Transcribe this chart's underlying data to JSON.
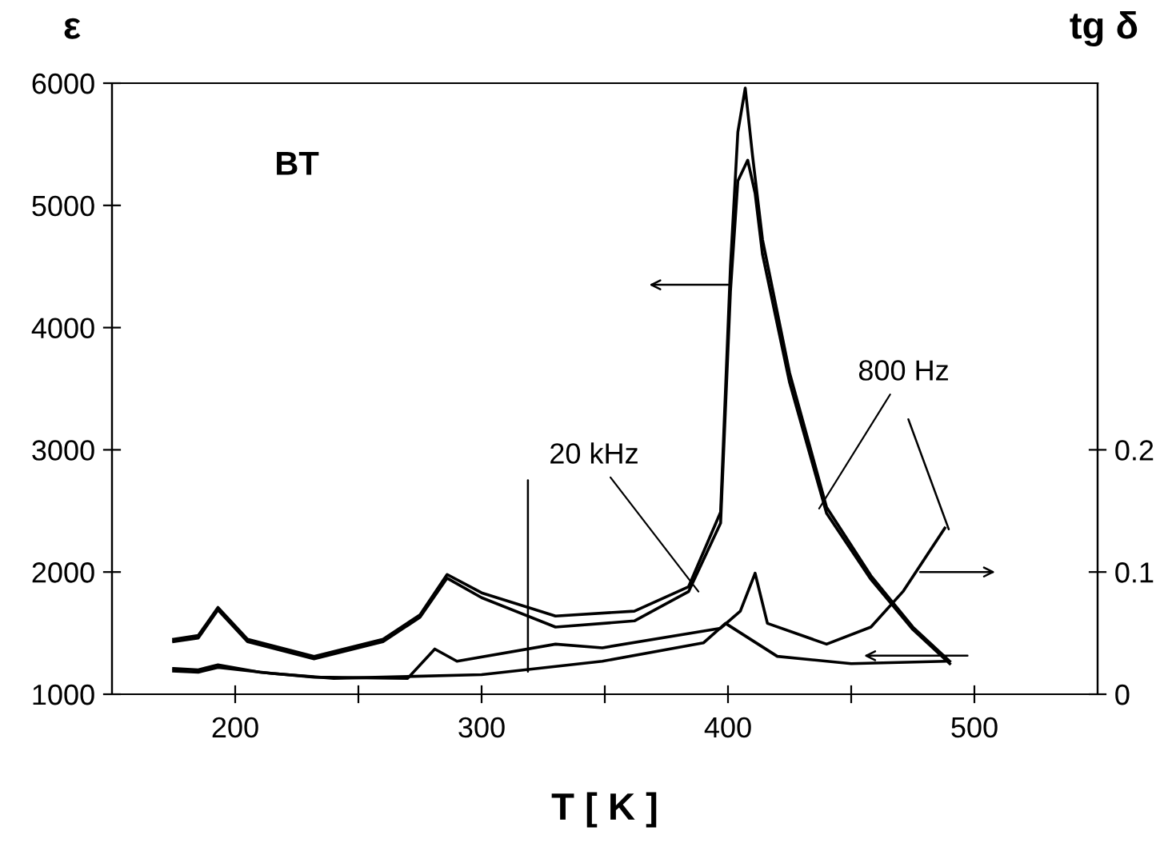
{
  "chart_data": {
    "type": "line",
    "xlabel": "T [ K ]",
    "ylabel": "ε",
    "y2label": "tg δ",
    "xlim": [
      150,
      550
    ],
    "xticks": [
      200,
      {
        "value": 250,
        "label": null
      },
      300,
      {
        "value": 350,
        "label": null
      },
      400,
      {
        "value": 450,
        "label": null
      },
      500
    ],
    "ylim": [
      1000,
      6000
    ],
    "yticks": [
      1000,
      2000,
      3000,
      4000,
      5000,
      6000
    ],
    "y2lim": [
      0,
      0.5
    ],
    "y2ticks": [
      0,
      0.1,
      0.2
    ],
    "grid": false,
    "legend": false,
    "marker": "none",
    "line_style": "solid",
    "series": [
      {
        "color": "#000000",
        "x": [
          175,
          185,
          193,
          205,
          232,
          260,
          275,
          286,
          300,
          330,
          362,
          384,
          397,
          401,
          404,
          407,
          410,
          414,
          425,
          440,
          458,
          475,
          490
        ],
        "values": [
          1450,
          1480,
          1710,
          1450,
          1310,
          1450,
          1650,
          1980,
          1830,
          1640,
          1680,
          1880,
          2490,
          4500,
          5600,
          5960,
          5400,
          4720,
          3630,
          2530,
          1970,
          1550,
          1270
        ]
      },
      {
        "color": "#000000",
        "x": [
          175,
          185,
          193,
          205,
          232,
          260,
          275,
          286,
          300,
          330,
          362,
          384,
          397,
          401,
          404,
          408,
          411,
          414,
          425,
          440,
          458,
          475,
          490
        ],
        "values": [
          1430,
          1460,
          1690,
          1430,
          1290,
          1430,
          1630,
          1950,
          1790,
          1550,
          1600,
          1840,
          2400,
          4300,
          5200,
          5370,
          5100,
          4600,
          3550,
          2480,
          1940,
          1530,
          1250
        ]
      },
      {
        "color": "#000000",
        "axis": "y2",
        "x": [
          175,
          185,
          193,
          210,
          232,
          270,
          281,
          290,
          330,
          349,
          397,
          405,
          411,
          416,
          440,
          458,
          471,
          488
        ],
        "values": [
          0.021,
          0.02,
          0.024,
          0.018,
          0.014,
          0.013,
          0.037,
          0.027,
          0.041,
          0.038,
          0.054,
          0.068,
          0.099,
          0.058,
          0.041,
          0.055,
          0.084,
          0.136
        ]
      },
      {
        "color": "#000000",
        "axis": "y2",
        "x": [
          175,
          185,
          193,
          215,
          240,
          300,
          349,
          390,
          399,
          420,
          450,
          488
        ],
        "values": [
          0.019,
          0.018,
          0.022,
          0.017,
          0.013,
          0.016,
          0.027,
          0.042,
          0.058,
          0.031,
          0.025,
          0.027
        ]
      }
    ],
    "annotations": [
      "BT",
      {
        "text": "20 kHz",
        "x": 388,
        "y": 1840
      },
      {
        "text": "800 Hz",
        "x": 437,
        "y": 2520
      }
    ]
  }
}
